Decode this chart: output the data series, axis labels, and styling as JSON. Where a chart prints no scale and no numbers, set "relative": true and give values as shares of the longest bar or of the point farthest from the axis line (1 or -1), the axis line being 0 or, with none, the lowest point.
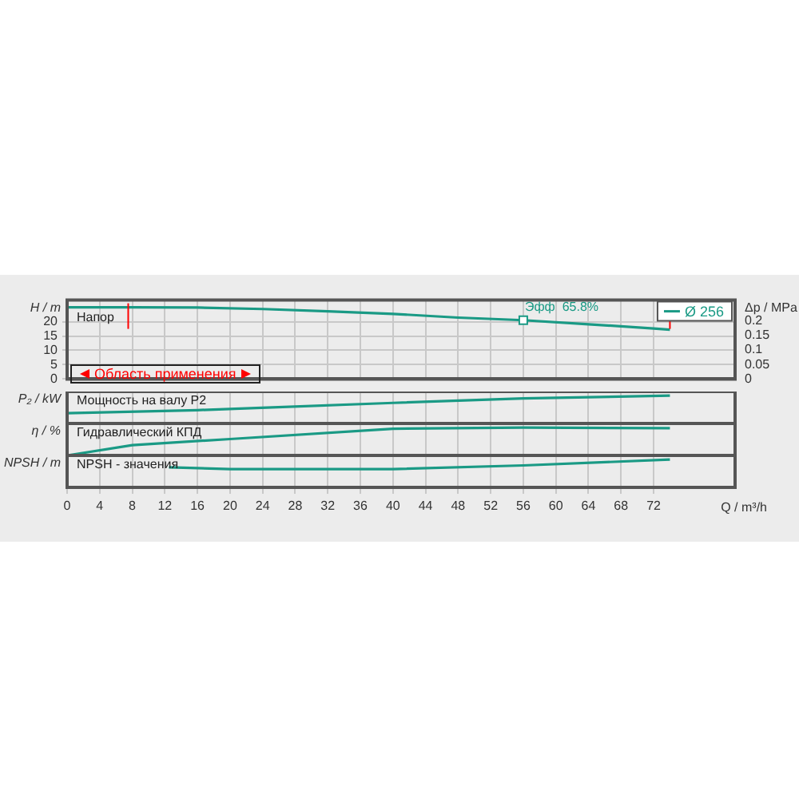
{
  "chart_data": [
    {
      "type": "line",
      "ylabel": "H / m",
      "y2label": "Δp / MPa",
      "xlim": [
        0,
        82
      ],
      "xticks": [
        0,
        4,
        8,
        12,
        16,
        20,
        24,
        28,
        32,
        36,
        40,
        44,
        48,
        52,
        56,
        60,
        64,
        68,
        72
      ],
      "ylim": [
        0,
        27.5
      ],
      "yticks": [
        0,
        5,
        10,
        15,
        20
      ],
      "y2lim": [
        0,
        0.27
      ],
      "y2ticks": [
        0,
        0.05,
        0.1,
        0.15,
        0.2
      ],
      "grid": true,
      "legend": "top right",
      "tick_labels": "y",
      "series": [
        {
          "name": "Ø 256",
          "color": "#1a9a85",
          "x": [
            0,
            8,
            16,
            24,
            32,
            40,
            48,
            56,
            64,
            72,
            74
          ],
          "values": [
            25.0,
            25.0,
            24.9,
            24.4,
            23.6,
            22.7,
            21.4,
            20.5,
            19.1,
            17.6,
            17.2
          ]
        }
      ],
      "annotations": [
        "Напор",
        "Область применения",
        {
          "text": "Эфф  65.8%",
          "x": 56,
          "y": 20.5
        }
      ],
      "ref_lines": [
        {
          "axis": "x",
          "value": 7.5,
          "color": "#ff0000"
        },
        {
          "axis": "x",
          "value": 74,
          "color": "#ff0000"
        }
      ]
    },
    {
      "type": "line",
      "ylabel": "P₂ / kW",
      "relative": true,
      "xlim": [
        0,
        82
      ],
      "xticks": [
        0,
        4,
        8,
        12,
        16,
        20,
        24,
        28,
        32,
        36,
        40,
        44,
        48,
        52,
        56,
        60,
        64,
        68,
        72
      ],
      "grid": "x",
      "tick_labels": false,
      "series": [
        {
          "color": "#1a9a85",
          "x": [
            0,
            16,
            40,
            56,
            74
          ],
          "values": [
            0.37,
            0.48,
            0.74,
            0.9,
            1
          ]
        }
      ],
      "annotations": [
        "Мощность на валу P2"
      ]
    },
    {
      "type": "line",
      "ylabel": "η / %",
      "relative": true,
      "xlim": [
        0,
        82
      ],
      "xticks": [
        0,
        4,
        8,
        12,
        16,
        20,
        24,
        28,
        32,
        36,
        40,
        44,
        48,
        52,
        56,
        60,
        64,
        68,
        72
      ],
      "grid": "x",
      "tick_labels": false,
      "series": [
        {
          "color": "#1a9a85",
          "x": [
            0,
            8,
            20,
            40,
            56,
            74
          ],
          "values": [
            0,
            0.37,
            0.59,
            0.96,
            1,
            0.98
          ]
        }
      ],
      "annotations": [
        "Гидравлический КПД"
      ]
    },
    {
      "type": "line",
      "ylabel": "NPSH / m",
      "xlabel": "Q / m³/h",
      "relative": true,
      "xlim": [
        0,
        82
      ],
      "xticks": [
        0,
        4,
        8,
        12,
        16,
        20,
        24,
        28,
        32,
        36,
        40,
        44,
        48,
        52,
        56,
        60,
        64,
        68,
        72
      ],
      "grid": "x",
      "tick_labels": "x",
      "series": [
        {
          "color": "#1a9a85",
          "x": [
            12.5,
            20,
            40,
            56,
            74
          ],
          "values": [
            0.72,
            0.66,
            0.66,
            0.79,
            1
          ]
        }
      ],
      "annotations": [
        "NPSH - значения"
      ]
    }
  ]
}
